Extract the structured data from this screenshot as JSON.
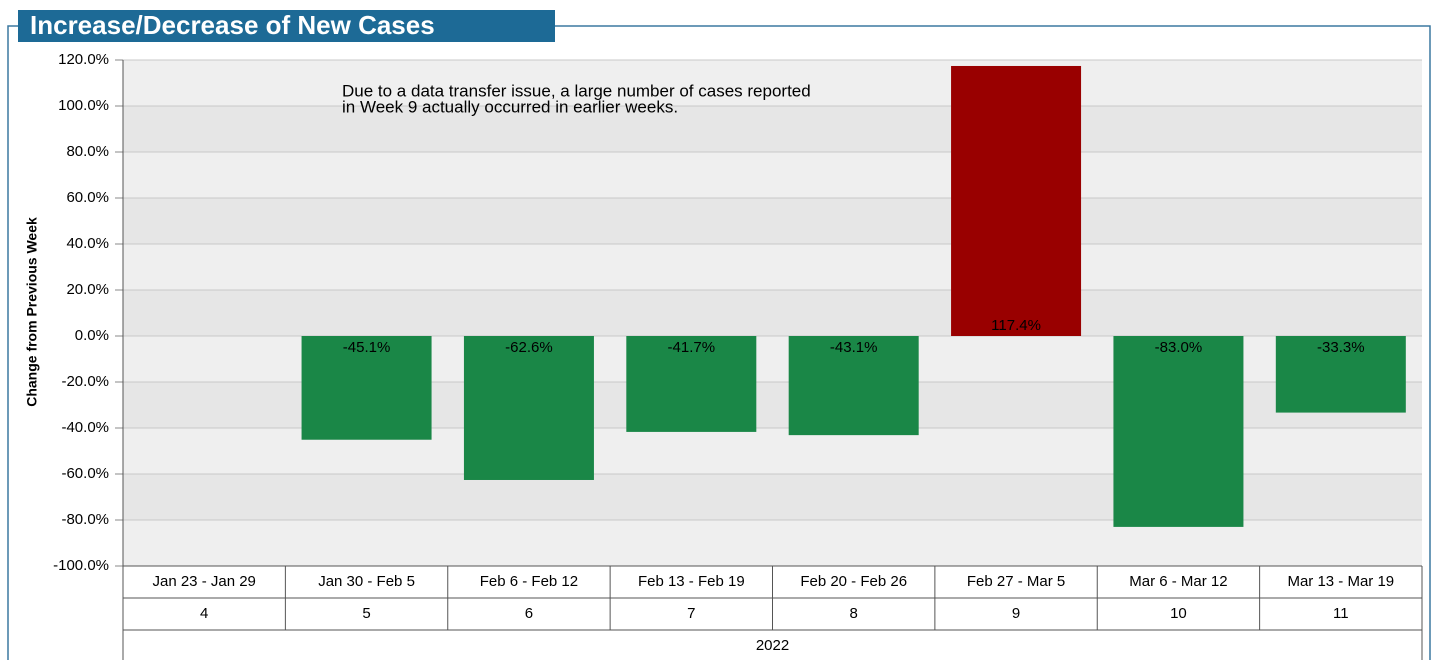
{
  "chart_data": {
    "type": "bar",
    "title": "Increase/Decrease of New Cases",
    "y_label": "Change from Previous Week",
    "annotation": [
      "Due to a data transfer issue, a large number of cases reported",
      "in Week 9 actually occurred in earlier weeks."
    ],
    "categories": [
      "Jan 23 - Jan 29",
      "Jan 30 - Feb 5",
      "Feb 6 - Feb 12",
      "Feb 13 - Feb 19",
      "Feb 20 - Feb 26",
      "Feb 27 - Mar 5",
      "Mar 6 - Mar 12",
      "Mar 13 - Mar 19"
    ],
    "weeks": [
      "4",
      "5",
      "6",
      "7",
      "8",
      "9",
      "10",
      "11"
    ],
    "year": "2022",
    "values": [
      null,
      -45.1,
      -62.6,
      -41.7,
      -43.1,
      117.4,
      -83.0,
      -33.3
    ],
    "value_labels": [
      null,
      "-45.1%",
      "-62.6%",
      "-41.7%",
      "-43.1%",
      "117.4%",
      "-83.0%",
      "-33.3%"
    ],
    "positive_color": "#990000",
    "negative_color": "#1a8747",
    "ylim": [
      -100,
      120
    ],
    "yticks": [
      {
        "value": -100,
        "label": "-100.0%"
      },
      {
        "value": -80,
        "label": "-80.0%"
      },
      {
        "value": -60,
        "label": "-60.0%"
      },
      {
        "value": -40,
        "label": "-40.0%"
      },
      {
        "value": -20,
        "label": "-20.0%"
      },
      {
        "value": 0,
        "label": "0.0%"
      },
      {
        "value": 20,
        "label": "20.0%"
      },
      {
        "value": 40,
        "label": "40.0%"
      },
      {
        "value": 60,
        "label": "60.0%"
      },
      {
        "value": 80,
        "label": "80.0%"
      },
      {
        "value": 100,
        "label": "100.0%"
      },
      {
        "value": 120,
        "label": "120.0%"
      }
    ],
    "grid": true
  }
}
